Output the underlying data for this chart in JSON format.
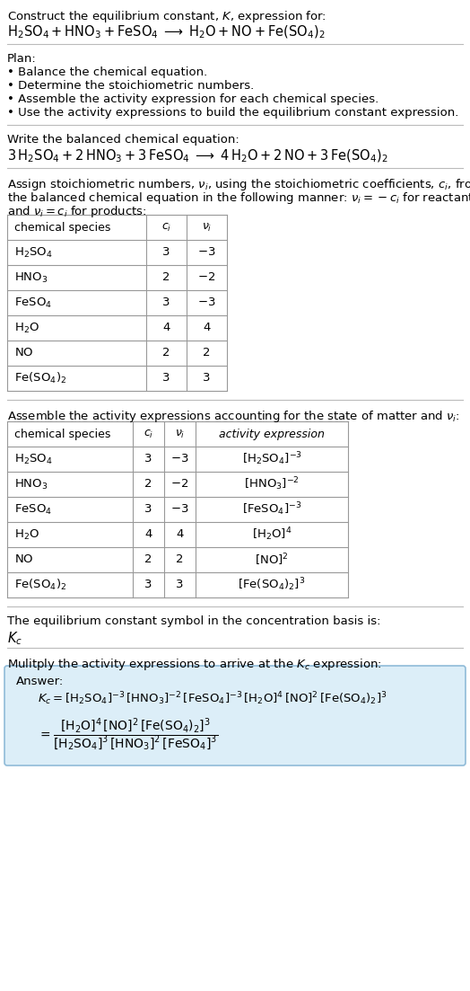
{
  "title_line1": "Construct the equilibrium constant, $K$, expression for:",
  "title_line2": "$\\mathrm{H_2SO_4 + HNO_3 + FeSO_4 \\;\\longrightarrow\\; H_2O + NO + Fe(SO_4)_2}$",
  "plan_header": "Plan:",
  "plan_items": [
    "• Balance the chemical equation.",
    "• Determine the stoichiometric numbers.",
    "• Assemble the activity expression for each chemical species.",
    "• Use the activity expressions to build the equilibrium constant expression."
  ],
  "balanced_header": "Write the balanced chemical equation:",
  "balanced_eq": "$3\\,\\mathrm{H_2SO_4} + 2\\,\\mathrm{HNO_3} + 3\\,\\mathrm{FeSO_4} \\;\\longrightarrow\\; 4\\,\\mathrm{H_2O} + 2\\,\\mathrm{NO} + 3\\,\\mathrm{Fe(SO_4)_2}$",
  "stoich_line1": "Assign stoichiometric numbers, $\\nu_i$, using the stoichiometric coefficients, $c_i$, from",
  "stoich_line2": "the balanced chemical equation in the following manner: $\\nu_i = -c_i$ for reactants",
  "stoich_line3": "and $\\nu_i = c_i$ for products:",
  "table1_headers": [
    "chemical species",
    "$c_i$",
    "$\\nu_i$"
  ],
  "table1_rows": [
    [
      "$\\mathrm{H_2SO_4}$",
      "3",
      "$-3$"
    ],
    [
      "$\\mathrm{HNO_3}$",
      "2",
      "$-2$"
    ],
    [
      "$\\mathrm{FeSO_4}$",
      "3",
      "$-3$"
    ],
    [
      "$\\mathrm{H_2O}$",
      "4",
      "4"
    ],
    [
      "$\\mathrm{NO}$",
      "2",
      "2"
    ],
    [
      "$\\mathrm{Fe(SO_4)_2}$",
      "3",
      "3"
    ]
  ],
  "activity_text": "Assemble the activity expressions accounting for the state of matter and $\\nu_i$:",
  "table2_headers": [
    "chemical species",
    "$c_i$",
    "$\\nu_i$",
    "activity expression"
  ],
  "table2_rows": [
    [
      "$\\mathrm{H_2SO_4}$",
      "3",
      "$-3$",
      "$[\\mathrm{H_2SO_4}]^{-3}$"
    ],
    [
      "$\\mathrm{HNO_3}$",
      "2",
      "$-2$",
      "$[\\mathrm{HNO_3}]^{-2}$"
    ],
    [
      "$\\mathrm{FeSO_4}$",
      "3",
      "$-3$",
      "$[\\mathrm{FeSO_4}]^{-3}$"
    ],
    [
      "$\\mathrm{H_2O}$",
      "4",
      "4",
      "$[\\mathrm{H_2O}]^{4}$"
    ],
    [
      "$\\mathrm{NO}$",
      "2",
      "2",
      "$[\\mathrm{NO}]^{2}$"
    ],
    [
      "$\\mathrm{Fe(SO_4)_2}$",
      "3",
      "3",
      "$[\\mathrm{Fe(SO_4)_2}]^{3}$"
    ]
  ],
  "kc_text": "The equilibrium constant symbol in the concentration basis is:",
  "kc_symbol": "$K_c$",
  "multiply_text": "Mulitply the activity expressions to arrive at the $K_c$ expression:",
  "answer_label": "Answer:",
  "answer_line1": "$K_c = [\\mathrm{H_2SO_4}]^{-3}\\,[\\mathrm{HNO_3}]^{-2}\\,[\\mathrm{FeSO_4}]^{-3}\\,[\\mathrm{H_2O}]^{4}\\,[\\mathrm{NO}]^{2}\\,[\\mathrm{Fe(SO_4)_2}]^{3}$",
  "answer_eq_lhs": "$= \\dfrac{[\\mathrm{H_2O}]^{4}\\,[\\mathrm{NO}]^{2}\\,[\\mathrm{Fe(SO_4)_2}]^{3}}{[\\mathrm{H_2SO_4}]^{3}\\,[\\mathrm{HNO_3}]^{2}\\,[\\mathrm{FeSO_4}]^{3}}$",
  "bg_color": "#ffffff",
  "answer_box_color": "#dceef8",
  "answer_box_border": "#90bbd8",
  "text_color": "#000000",
  "sep_color": "#bbbbbb",
  "table_border_color": "#999999",
  "font_size": 9.5,
  "eq_font_size": 10.5
}
